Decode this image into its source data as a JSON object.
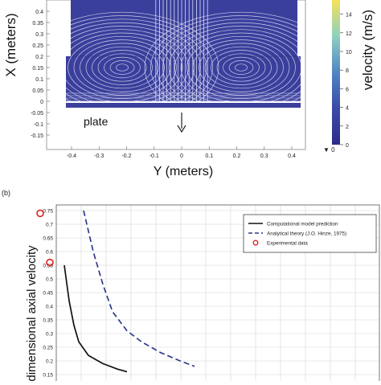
{
  "top_panel": {
    "xlabel": "Y (meters)",
    "ylabel": "X (meters)",
    "colorbar_label": "velocity (m/s)",
    "plate_label": "plate",
    "x_ticks": [
      "-0.4",
      "-0.3",
      "-0.2",
      "-0.1",
      "0",
      "0.1",
      "0.2",
      "0.3",
      "0.4"
    ],
    "y_ticks": [
      "0.4",
      "0.35",
      "0.3",
      "0.25",
      "0.2",
      "0.15",
      "0.1",
      "0.05",
      "0",
      "-0.05",
      "-0.1",
      "-0.15"
    ],
    "colorbar_ticks": [
      "14",
      "12",
      "10",
      "8",
      "6",
      "4",
      "2",
      "0"
    ],
    "colorbar_min_marker": "▼ 0",
    "fill_color": "#3b3f9c",
    "streamline_color": "#d9dcf2"
  },
  "panel_b_label": "(b)",
  "chart_data": {
    "type": "line",
    "title": "",
    "xlabel": "",
    "ylabel": "dimensional axial velocity",
    "ylim": [
      0.15,
      0.75
    ],
    "y_ticks": [
      "0.75",
      "0.7",
      "0.65",
      "0.6",
      "0.55",
      "0.5",
      "0.45",
      "0.4",
      "0.35",
      "0.3",
      "0.25",
      "0.2",
      "0.15"
    ],
    "grid": true,
    "legend_position": "top-right",
    "series": [
      {
        "name": "Computational model prediction",
        "style": "solid",
        "color": "#111111",
        "points": [
          [
            0.0,
            0.55
          ],
          [
            0.1,
            0.42
          ],
          [
            0.2,
            0.33
          ],
          [
            0.3,
            0.27
          ],
          [
            0.5,
            0.22
          ],
          [
            0.8,
            0.19
          ],
          [
            1.1,
            0.17
          ],
          [
            1.3,
            0.16
          ]
        ]
      },
      {
        "name": "Analytical theory (J.O. Hinze, 1975)",
        "style": "dashed",
        "color": "#2e3a8c",
        "points": [
          [
            0.4,
            0.75
          ],
          [
            0.6,
            0.6
          ],
          [
            0.8,
            0.48
          ],
          [
            1.0,
            0.38
          ],
          [
            1.3,
            0.31
          ],
          [
            1.6,
            0.27
          ],
          [
            2.0,
            0.23
          ],
          [
            2.4,
            0.2
          ],
          [
            2.7,
            0.18
          ]
        ]
      },
      {
        "name": "Experimental data",
        "style": "marker",
        "color": "#e02020",
        "points": [
          [
            -0.5,
            0.74
          ],
          [
            -0.3,
            0.56
          ]
        ]
      }
    ]
  }
}
